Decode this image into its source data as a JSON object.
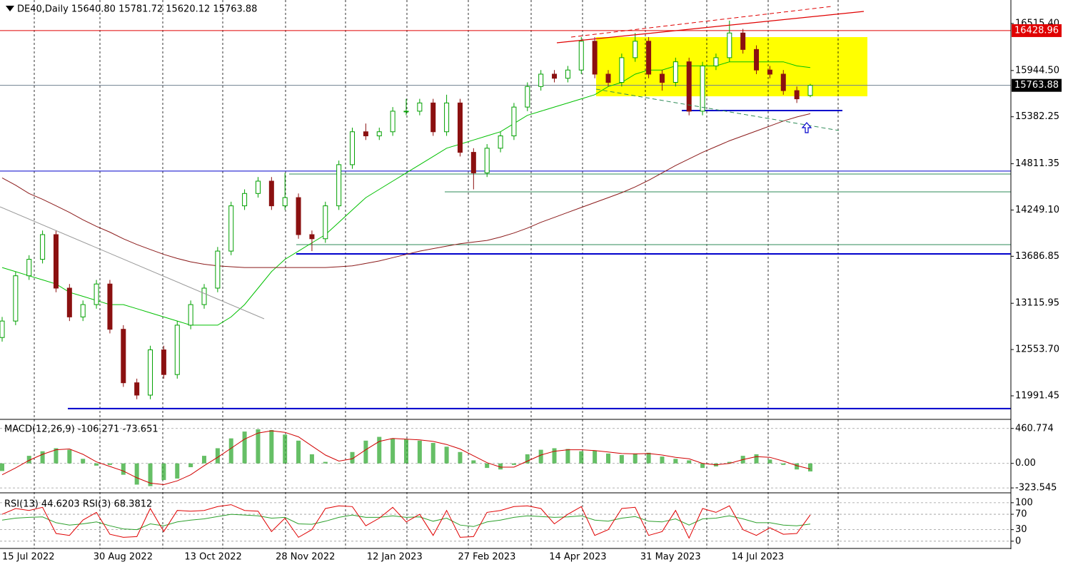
{
  "chart_data": [
    {
      "type": "candlestick",
      "title": "DE40,Daily  15640.80 15781.72 15620.12 15763.88",
      "up_color": "#00a000",
      "down_color": "#8b1010",
      "ylim": [
        11714,
        16801
      ],
      "yticks": [
        {
          "value": 16515.4,
          "label": "16515.40"
        },
        {
          "value": 15944.5,
          "label": "15944.50"
        },
        15382.25,
        14811.35,
        {
          "value": 14249.1,
          "label": "14249.10"
        },
        13686.85,
        13115.95,
        {
          "value": 12553.7,
          "label": "12553.70"
        },
        11991.45
      ],
      "x_labels": [
        "15 Jul 2022",
        "30 Aug 2022",
        "13 Oct 2022",
        "28 Nov 2022",
        "12 Jan 2023",
        "27 Feb 2023",
        "14 Apr 2023",
        "31 May 2023",
        "14 Jul 2023"
      ],
      "ohlc": [
        [
          12700,
          12950,
          12650,
          12900
        ],
        [
          12900,
          13500,
          12850,
          13450
        ],
        [
          13450,
          13700,
          13400,
          13650
        ],
        [
          13650,
          14000,
          13600,
          13950
        ],
        [
          13950,
          14000,
          13250,
          13300
        ],
        [
          13300,
          13350,
          12900,
          12950
        ],
        [
          12950,
          13150,
          12900,
          13100
        ],
        [
          13100,
          13400,
          13050,
          13350
        ],
        [
          13350,
          13400,
          12750,
          12800
        ],
        [
          12800,
          12850,
          12100,
          12150
        ],
        [
          12150,
          12200,
          11950,
          12000
        ],
        [
          12000,
          12600,
          11950,
          12550
        ],
        [
          12550,
          12600,
          12200,
          12250
        ],
        [
          12250,
          12900,
          12200,
          12850
        ],
        [
          12850,
          13150,
          12800,
          13100
        ],
        [
          13100,
          13350,
          13050,
          13300
        ],
        [
          13300,
          13800,
          13250,
          13750
        ],
        [
          13750,
          14350,
          13700,
          14300
        ],
        [
          14300,
          14500,
          14250,
          14450
        ],
        [
          14450,
          14650,
          14400,
          14600
        ],
        [
          14600,
          14650,
          14250,
          14300
        ],
        [
          14300,
          14700,
          14250,
          14400
        ],
        [
          14400,
          14450,
          13900,
          13950
        ],
        [
          13950,
          14000,
          13750,
          13900
        ],
        [
          13900,
          14350,
          13850,
          14300
        ],
        [
          14300,
          14850,
          14250,
          14800
        ],
        [
          14800,
          15250,
          14750,
          15200
        ],
        [
          15200,
          15300,
          15100,
          15150
        ],
        [
          15150,
          15250,
          15100,
          15200
        ],
        [
          15200,
          15500,
          15150,
          15450
        ],
        [
          15450,
          15600,
          15400,
          15450
        ],
        [
          15450,
          15600,
          15400,
          15550
        ],
        [
          15550,
          15600,
          15150,
          15200
        ],
        [
          15200,
          15650,
          15150,
          15550
        ],
        [
          15550,
          15600,
          14900,
          14950
        ],
        [
          14950,
          15000,
          14500,
          14700
        ],
        [
          14700,
          15050,
          14650,
          15000
        ],
        [
          15000,
          15200,
          14950,
          15150
        ],
        [
          15150,
          15550,
          15100,
          15500
        ],
        [
          15500,
          15800,
          15450,
          15750
        ],
        [
          15750,
          15950,
          15700,
          15900
        ],
        [
          15900,
          15950,
          15800,
          15850
        ],
        [
          15850,
          16000,
          15800,
          15950
        ],
        [
          15950,
          16350,
          15900,
          16300
        ],
        [
          16300,
          16350,
          15850,
          15900
        ],
        [
          15900,
          15950,
          15750,
          15800
        ],
        [
          15800,
          16150,
          15750,
          16100
        ],
        [
          16100,
          16400,
          16050,
          16300
        ],
        [
          16300,
          16350,
          15850,
          15900
        ],
        [
          15900,
          15950,
          15700,
          15800
        ],
        [
          15800,
          16100,
          15750,
          16050
        ],
        [
          16050,
          16100,
          15400,
          15450
        ],
        [
          15450,
          16050,
          15400,
          16000
        ],
        [
          16000,
          16150,
          15950,
          16100
        ],
        [
          16100,
          16550,
          16050,
          16400
        ],
        [
          16400,
          16450,
          16150,
          16200
        ],
        [
          16200,
          16250,
          15900,
          15950
        ],
        [
          15950,
          16000,
          15850,
          15900
        ],
        [
          15900,
          15950,
          15650,
          15700
        ],
        [
          15700,
          15750,
          15550,
          15600
        ],
        [
          15640.8,
          15781.72,
          15620.12,
          15763.88
        ]
      ],
      "overlays": [
        {
          "color": "#00c000",
          "values": [
            13550,
            13500,
            13450,
            13400,
            13350,
            13250,
            13200,
            13150,
            13100,
            13100,
            13050,
            13000,
            12950,
            12900,
            12850,
            12850,
            12850,
            12950,
            13100,
            13300,
            13500,
            13650,
            13750,
            13850,
            13950,
            14100,
            14250,
            14400,
            14500,
            14600,
            14700,
            14800,
            14900,
            15000,
            15050,
            15100,
            15150,
            15200,
            15300,
            15400,
            15450,
            15500,
            15550,
            15600,
            15650,
            15750,
            15800,
            15900,
            15950,
            15950,
            16000,
            16000,
            16000,
            16000,
            16050,
            16050,
            16050,
            16050,
            16050,
            16000,
            15980
          ]
        },
        {
          "color": "#8b1a1a",
          "values": [
            14640,
            14550,
            14450,
            14380,
            14300,
            14220,
            14130,
            14050,
            13980,
            13900,
            13830,
            13770,
            13710,
            13660,
            13620,
            13590,
            13570,
            13560,
            13550,
            13550,
            13550,
            13550,
            13550,
            13550,
            13550,
            13560,
            13570,
            13600,
            13630,
            13670,
            13710,
            13750,
            13780,
            13810,
            13840,
            13860,
            13880,
            13920,
            13970,
            14030,
            14100,
            14160,
            14220,
            14280,
            14340,
            14400,
            14460,
            14530,
            14610,
            14700,
            14790,
            14870,
            14950,
            15020,
            15090,
            15150,
            15210,
            15270,
            15330,
            15380,
            15420
          ]
        }
      ],
      "horizontal_lines": [
        {
          "value": 16428.96,
          "color": "#e00000"
        },
        {
          "value": 15763.88,
          "color": "#708090"
        },
        {
          "value": 14722,
          "color": "#0000cc"
        },
        {
          "value": 14687,
          "color": "#2e8b57"
        },
        {
          "value": 14470,
          "color": "#2e8b57"
        },
        {
          "value": 13829,
          "color": "#2e8b57"
        },
        {
          "value": 13716,
          "color": "#0000cc"
        },
        {
          "value": 11836,
          "color": "#0000cc"
        },
        {
          "value": 15458,
          "color": "#0000cc"
        }
      ]
    },
    {
      "type": "macd",
      "title": "MACD(12,26,9) -106.271 -73.651",
      "ylim": [
        -379,
        562
      ],
      "yticks": [
        460.774,
        {
          "value": 0,
          "label": "0.00"
        },
        -323.545
      ],
      "histogram": {
        "color": "#33aa33",
        "values": [
          -100,
          0,
          100,
          160,
          200,
          180,
          60,
          -30,
          -20,
          -150,
          -280,
          -300,
          -220,
          -200,
          -50,
          100,
          200,
          330,
          420,
          450,
          440,
          380,
          300,
          120,
          20,
          0,
          150,
          300,
          350,
          330,
          320,
          300,
          270,
          220,
          150,
          40,
          -60,
          -80,
          -20,
          120,
          180,
          200,
          190,
          160,
          170,
          130,
          110,
          130,
          140,
          90,
          60,
          40,
          -60,
          -40,
          20,
          100,
          120,
          50,
          -20,
          -80,
          -106.271
        ]
      },
      "signal": {
        "color": "#d00000",
        "values": [
          -150,
          -60,
          40,
          120,
          180,
          190,
          120,
          20,
          -40,
          -100,
          -190,
          -260,
          -280,
          -230,
          -150,
          -30,
          80,
          200,
          320,
          400,
          430,
          410,
          350,
          230,
          110,
          30,
          60,
          180,
          290,
          330,
          320,
          310,
          290,
          250,
          190,
          100,
          10,
          -50,
          -50,
          30,
          110,
          160,
          180,
          180,
          170,
          150,
          130,
          125,
          130,
          110,
          80,
          60,
          0,
          -20,
          0,
          50,
          90,
          80,
          30,
          -30,
          -73.651
        ]
      }
    },
    {
      "type": "line",
      "title": "RSI(13) 44.6203  RSI(3) 68.3812",
      "ylim": [
        -17,
        122
      ],
      "yticks": [
        100,
        70,
        30,
        0
      ],
      "series": [
        {
          "color": "#2ca02c",
          "values": [
            55,
            60,
            62,
            63,
            48,
            42,
            45,
            50,
            40,
            32,
            30,
            45,
            40,
            50,
            55,
            58,
            64,
            70,
            68,
            66,
            60,
            62,
            45,
            44,
            52,
            62,
            68,
            62,
            62,
            66,
            62,
            63,
            52,
            60,
            42,
            38,
            50,
            55,
            62,
            66,
            64,
            62,
            63,
            66,
            55,
            52,
            60,
            64,
            52,
            50,
            58,
            42,
            58,
            60,
            66,
            58,
            48,
            48,
            42,
            40,
            44.6203
          ]
        },
        {
          "color": "#e00000",
          "values": [
            70,
            85,
            80,
            88,
            20,
            15,
            55,
            75,
            18,
            10,
            12,
            85,
            25,
            80,
            78,
            80,
            90,
            95,
            80,
            78,
            25,
            60,
            10,
            30,
            85,
            92,
            90,
            40,
            60,
            88,
            50,
            70,
            15,
            80,
            10,
            12,
            75,
            80,
            90,
            92,
            85,
            45,
            70,
            90,
            15,
            30,
            85,
            88,
            15,
            25,
            80,
            8,
            85,
            75,
            92,
            30,
            15,
            35,
            18,
            20,
            68.3812
          ]
        }
      ]
    }
  ]
}
